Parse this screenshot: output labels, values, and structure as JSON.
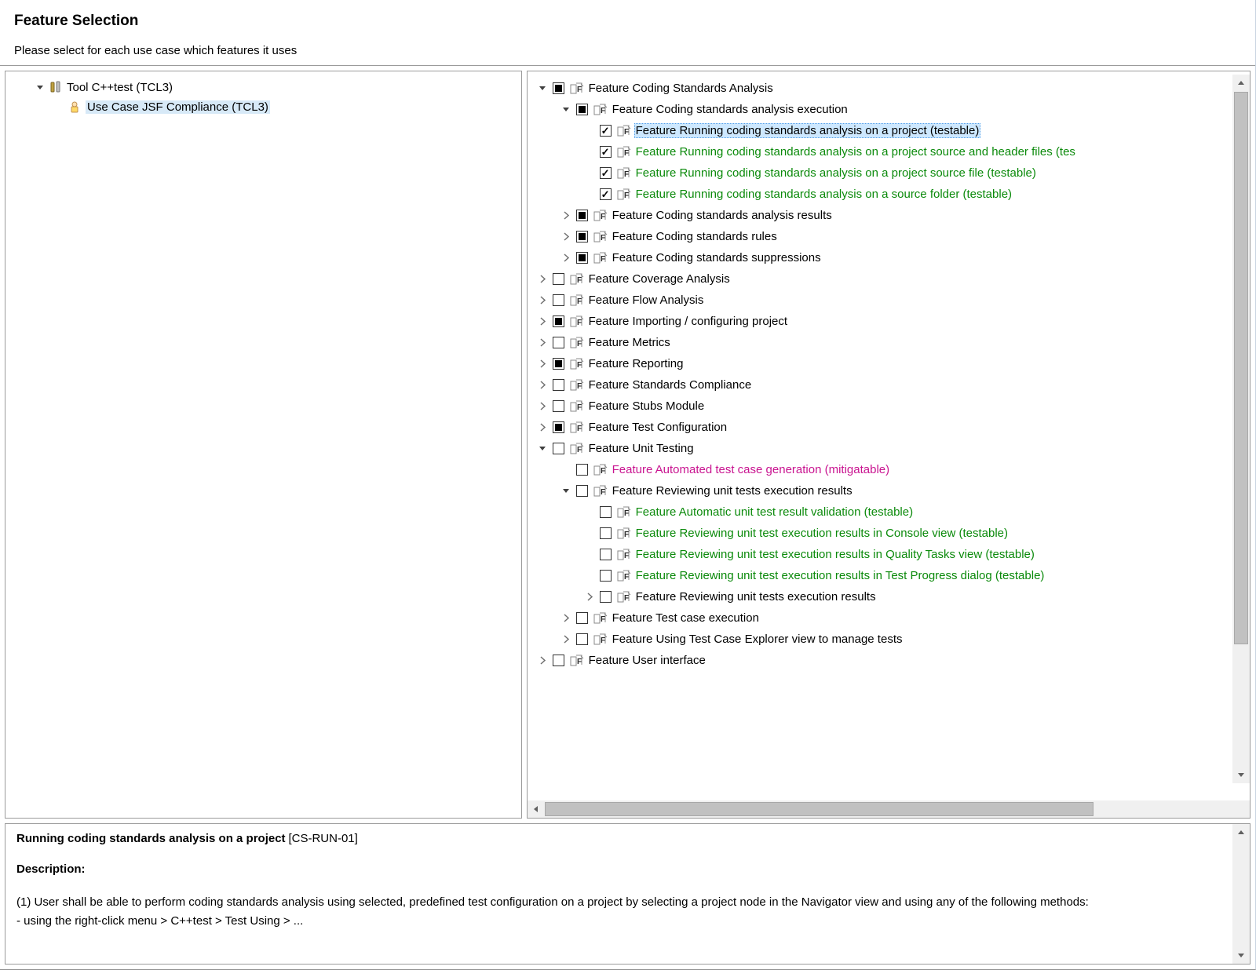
{
  "title": "Feature Selection",
  "subtitle": "Please select for each use case which features it uses",
  "colors": {
    "testable": "#0b8a0b",
    "mitigatable": "#c91490",
    "normal": "#000000",
    "selection_bg": "#cde8ff",
    "selection_border": "#4f9de8",
    "panel_border": "#9b9b9b"
  },
  "left_tree": [
    {
      "id": "tool",
      "label": "Tool C++test (TCL3)",
      "icon": "tool",
      "expanded": true,
      "children": [
        {
          "id": "uc",
          "label": "Use Case JSF Compliance (TCL3)",
          "icon": "user",
          "children": [],
          "selected_bg": true
        }
      ]
    }
  ],
  "right_tree": [
    {
      "label": "Feature Coding Standards Analysis",
      "check": "mixed",
      "expanded": true,
      "indent": 0,
      "children": [
        {
          "label": "Feature Coding standards analysis execution",
          "check": "mixed",
          "expanded": true,
          "indent": 1,
          "children": [
            {
              "label": "Feature Running coding standards analysis on a project (testable)",
              "check": "checked",
              "color": "normal",
              "indent": 2,
              "selected": true,
              "leaf": true
            },
            {
              "label": "Feature Running coding standards analysis on a project source and header files (tes",
              "check": "checked",
              "color": "testable",
              "indent": 2,
              "leaf": true
            },
            {
              "label": "Feature Running coding standards analysis on a project source file (testable)",
              "check": "checked",
              "color": "testable",
              "indent": 2,
              "leaf": true
            },
            {
              "label": "Feature Running coding standards analysis on a source folder (testable)",
              "check": "checked",
              "color": "testable",
              "indent": 2,
              "leaf": true
            }
          ]
        },
        {
          "label": "Feature Coding standards analysis results",
          "check": "mixed",
          "expanded": false,
          "indent": 1
        },
        {
          "label": "Feature Coding standards rules",
          "check": "mixed",
          "expanded": false,
          "indent": 1
        },
        {
          "label": "Feature Coding standards suppressions",
          "check": "mixed",
          "expanded": false,
          "indent": 1
        }
      ]
    },
    {
      "label": "Feature Coverage Analysis",
      "check": "unchecked",
      "expanded": false,
      "indent": 0
    },
    {
      "label": "Feature Flow Analysis",
      "check": "unchecked",
      "expanded": false,
      "indent": 0
    },
    {
      "label": "Feature Importing / configuring project",
      "check": "mixed",
      "expanded": false,
      "indent": 0
    },
    {
      "label": "Feature Metrics",
      "check": "unchecked",
      "expanded": false,
      "indent": 0
    },
    {
      "label": "Feature Reporting",
      "check": "mixed",
      "expanded": false,
      "indent": 0
    },
    {
      "label": "Feature Standards Compliance",
      "check": "unchecked",
      "expanded": false,
      "indent": 0
    },
    {
      "label": "Feature Stubs Module",
      "check": "unchecked",
      "expanded": false,
      "indent": 0
    },
    {
      "label": "Feature Test Configuration",
      "check": "mixed",
      "expanded": false,
      "indent": 0
    },
    {
      "label": "Feature Unit Testing",
      "check": "unchecked",
      "expanded": true,
      "indent": 0,
      "children": [
        {
          "label": "Feature Automated test case generation (mitigatable)",
          "check": "unchecked",
          "color": "mitigatable",
          "indent": 1,
          "leaf": true
        },
        {
          "label": "Feature Reviewing unit tests execution results",
          "check": "unchecked",
          "expanded": true,
          "indent": 1,
          "children": [
            {
              "label": "Feature Automatic unit test result validation (testable)",
              "check": "unchecked",
              "color": "testable",
              "indent": 2,
              "leaf": true
            },
            {
              "label": "Feature Reviewing unit test execution results in Console view (testable)",
              "check": "unchecked",
              "color": "testable",
              "indent": 2,
              "leaf": true
            },
            {
              "label": "Feature Reviewing unit test execution results in Quality Tasks view (testable)",
              "check": "unchecked",
              "color": "testable",
              "indent": 2,
              "leaf": true
            },
            {
              "label": "Feature Reviewing unit test execution results in Test Progress dialog (testable)",
              "check": "unchecked",
              "color": "testable",
              "indent": 2,
              "leaf": true
            },
            {
              "label": "Feature Reviewing unit tests execution results",
              "check": "unchecked",
              "expanded": false,
              "indent": 2
            }
          ]
        },
        {
          "label": "Feature Test case execution",
          "check": "unchecked",
          "expanded": false,
          "indent": 1
        },
        {
          "label": "Feature Using Test Case Explorer view to manage tests",
          "check": "unchecked",
          "expanded": false,
          "indent": 1
        }
      ]
    },
    {
      "label": "Feature User interface",
      "check": "unchecked",
      "expanded": false,
      "indent": 0
    }
  ],
  "detail": {
    "title": "Running coding standards analysis on a project",
    "id": "[CS-RUN-01]",
    "desc_label": "Description:",
    "body": "(1) User shall be able to perform coding standards analysis using selected, predefined test configuration on a project by selecting a project node in the Navigator view and using  any of the following methods:",
    "body2": " - using the right-click menu > C++test > Test Using > ..."
  }
}
